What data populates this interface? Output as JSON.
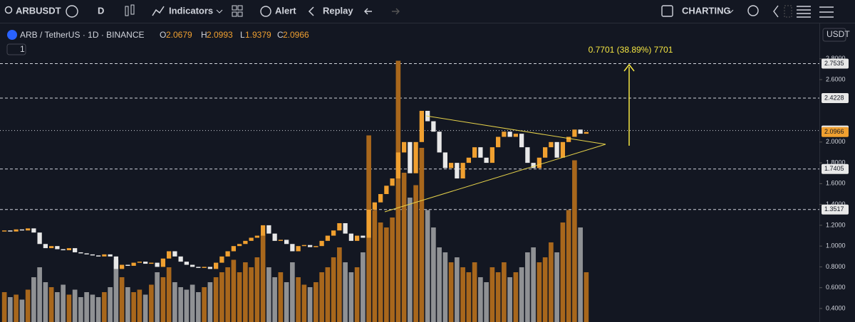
{
  "toolbar": {
    "symbol": "ARBUSDT",
    "interval": "D",
    "indicators": "Indicators",
    "alert": "Alert",
    "replay": "Replay",
    "layout": "CHARTING"
  },
  "legend": {
    "title": "ARB / TetherUS · 1D · BINANCE",
    "open_label": "O",
    "open": 2.0679,
    "high_label": "H",
    "high": 2.0993,
    "low_label": "L",
    "low": 1.9379,
    "close_label": "C",
    "close": 2.0966,
    "pane_count": "1",
    "currency": "USDT"
  },
  "chart_data": {
    "type": "candlestick",
    "closes": [
      1.15,
      1.14,
      1.16,
      1.15,
      1.17,
      1.13,
      1.02,
      0.98,
      1.0,
      0.97,
      0.96,
      0.98,
      0.94,
      0.93,
      0.92,
      0.91,
      0.9,
      0.92,
      0.9,
      0.78,
      0.82,
      0.81,
      0.84,
      0.85,
      0.83,
      0.84,
      0.8,
      0.88,
      0.95,
      0.9,
      0.85,
      0.82,
      0.8,
      0.79,
      0.8,
      0.78,
      0.84,
      0.9,
      0.95,
      1.0,
      1.02,
      1.05,
      1.08,
      1.1,
      1.2,
      1.12,
      1.05,
      1.06,
      1.02,
      0.95,
      1.0,
      1.01,
      0.99,
      1.0,
      1.05,
      1.1,
      1.15,
      1.22,
      1.12,
      1.05,
      1.1,
      1.08,
      1.35,
      1.42,
      1.5,
      1.58,
      1.65,
      1.9,
      2.0,
      1.7,
      2.0,
      2.3,
      2.2,
      2.1,
      1.9,
      1.75,
      1.8,
      1.65,
      1.8,
      1.85,
      1.95,
      1.85,
      1.8,
      1.95,
      2.05,
      2.1,
      2.05,
      2.08,
      1.95,
      1.8,
      1.75,
      1.85,
      1.95,
      2.0,
      1.85,
      2.0,
      2.05,
      2.12,
      2.08,
      2.0966
    ],
    "volume": [
      12,
      10,
      11,
      9,
      13,
      18,
      22,
      16,
      14,
      12,
      15,
      11,
      13,
      10,
      12,
      11,
      10,
      12,
      14,
      25,
      18,
      14,
      12,
      13,
      11,
      15,
      20,
      18,
      22,
      16,
      14,
      13,
      15,
      12,
      14,
      16,
      18,
      20,
      22,
      25,
      20,
      24,
      22,
      26,
      35,
      22,
      18,
      20,
      16,
      24,
      18,
      15,
      14,
      16,
      20,
      22,
      26,
      30,
      24,
      20,
      22,
      28,
      75,
      45,
      40,
      38,
      42,
      105,
      60,
      50,
      55,
      70,
      45,
      38,
      30,
      28,
      24,
      26,
      22,
      20,
      24,
      18,
      16,
      22,
      20,
      24,
      18,
      20,
      22,
      28,
      30,
      24,
      26,
      32,
      28,
      40,
      45,
      65,
      38,
      20
    ],
    "ylim": [
      0.27,
      3.14
    ],
    "vlim": [
      0,
      120
    ],
    "yticks": [
      {
        "value": 0.4,
        "label": "0.4000"
      },
      {
        "value": 0.6,
        "label": "0.6000"
      },
      {
        "value": 0.8,
        "label": "0.8000"
      },
      {
        "value": 1.0,
        "label": "1.0000"
      },
      {
        "value": 1.2,
        "label": "1.2000"
      },
      {
        "value": 1.4,
        "label": "1.4000"
      },
      {
        "value": 1.6,
        "label": "1.6000"
      },
      {
        "value": 1.8,
        "label": "1.8000"
      },
      {
        "value": 2.0,
        "label": "2.0000"
      },
      {
        "value": 2.6,
        "label": "2.6000"
      },
      {
        "value": 2.8,
        "label": "2.8000"
      }
    ],
    "levels": [
      2.7535,
      2.4228,
      2.1108,
      1.7405,
      1.3517
    ],
    "last_price": 2.0966,
    "up_color": "#f0a030",
    "down_color": "#e8e8e8",
    "up_volume_color": "#a8671c",
    "down_volume_color": "#8f9194",
    "annotation": "0.7701 (38.89%) 7701"
  }
}
